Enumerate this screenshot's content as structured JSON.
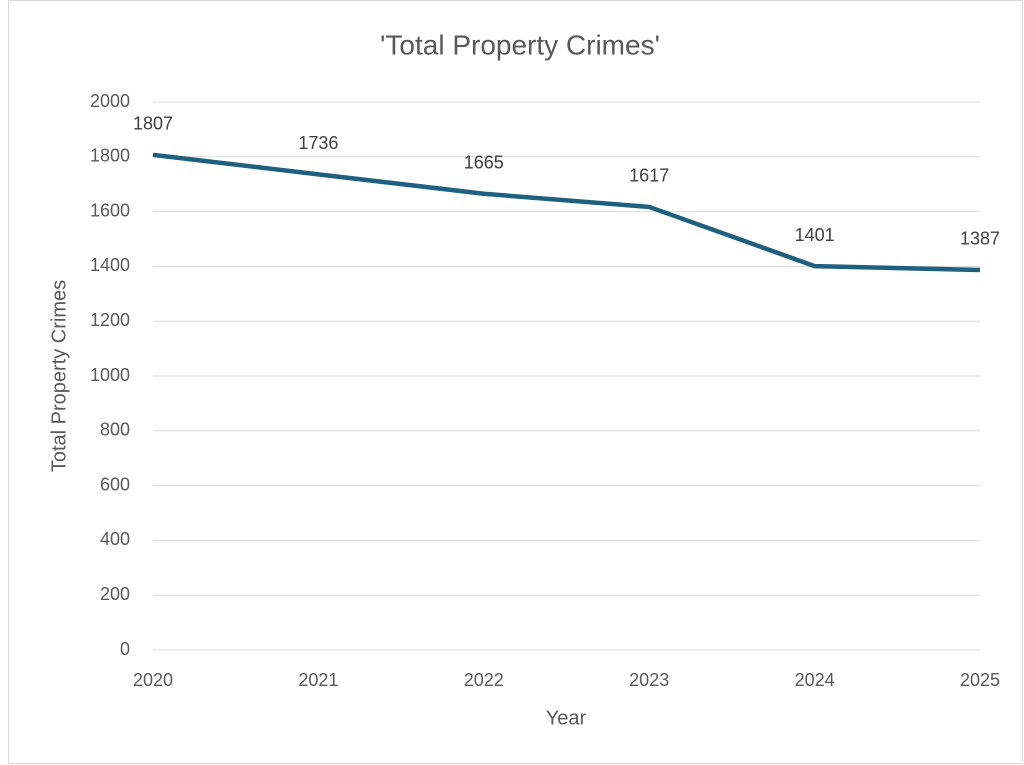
{
  "chart_data": {
    "type": "line",
    "title": "'Total Property Crimes'",
    "x_label": "Year",
    "y_label": "Total Property Crimes",
    "categories": [
      "2020",
      "2021",
      "2022",
      "2023",
      "2024",
      "2025"
    ],
    "series": [
      {
        "name": "Total Property Crimes",
        "color": "#1f5f7f",
        "values": [
          1807,
          1736,
          1665,
          1617,
          1401,
          1387
        ]
      }
    ],
    "ylim": [
      0,
      2000
    ],
    "yticks": [
      0,
      200,
      400,
      600,
      800,
      1000,
      1200,
      1400,
      1600,
      1800,
      2000
    ],
    "grid": true,
    "data_labels": true
  }
}
